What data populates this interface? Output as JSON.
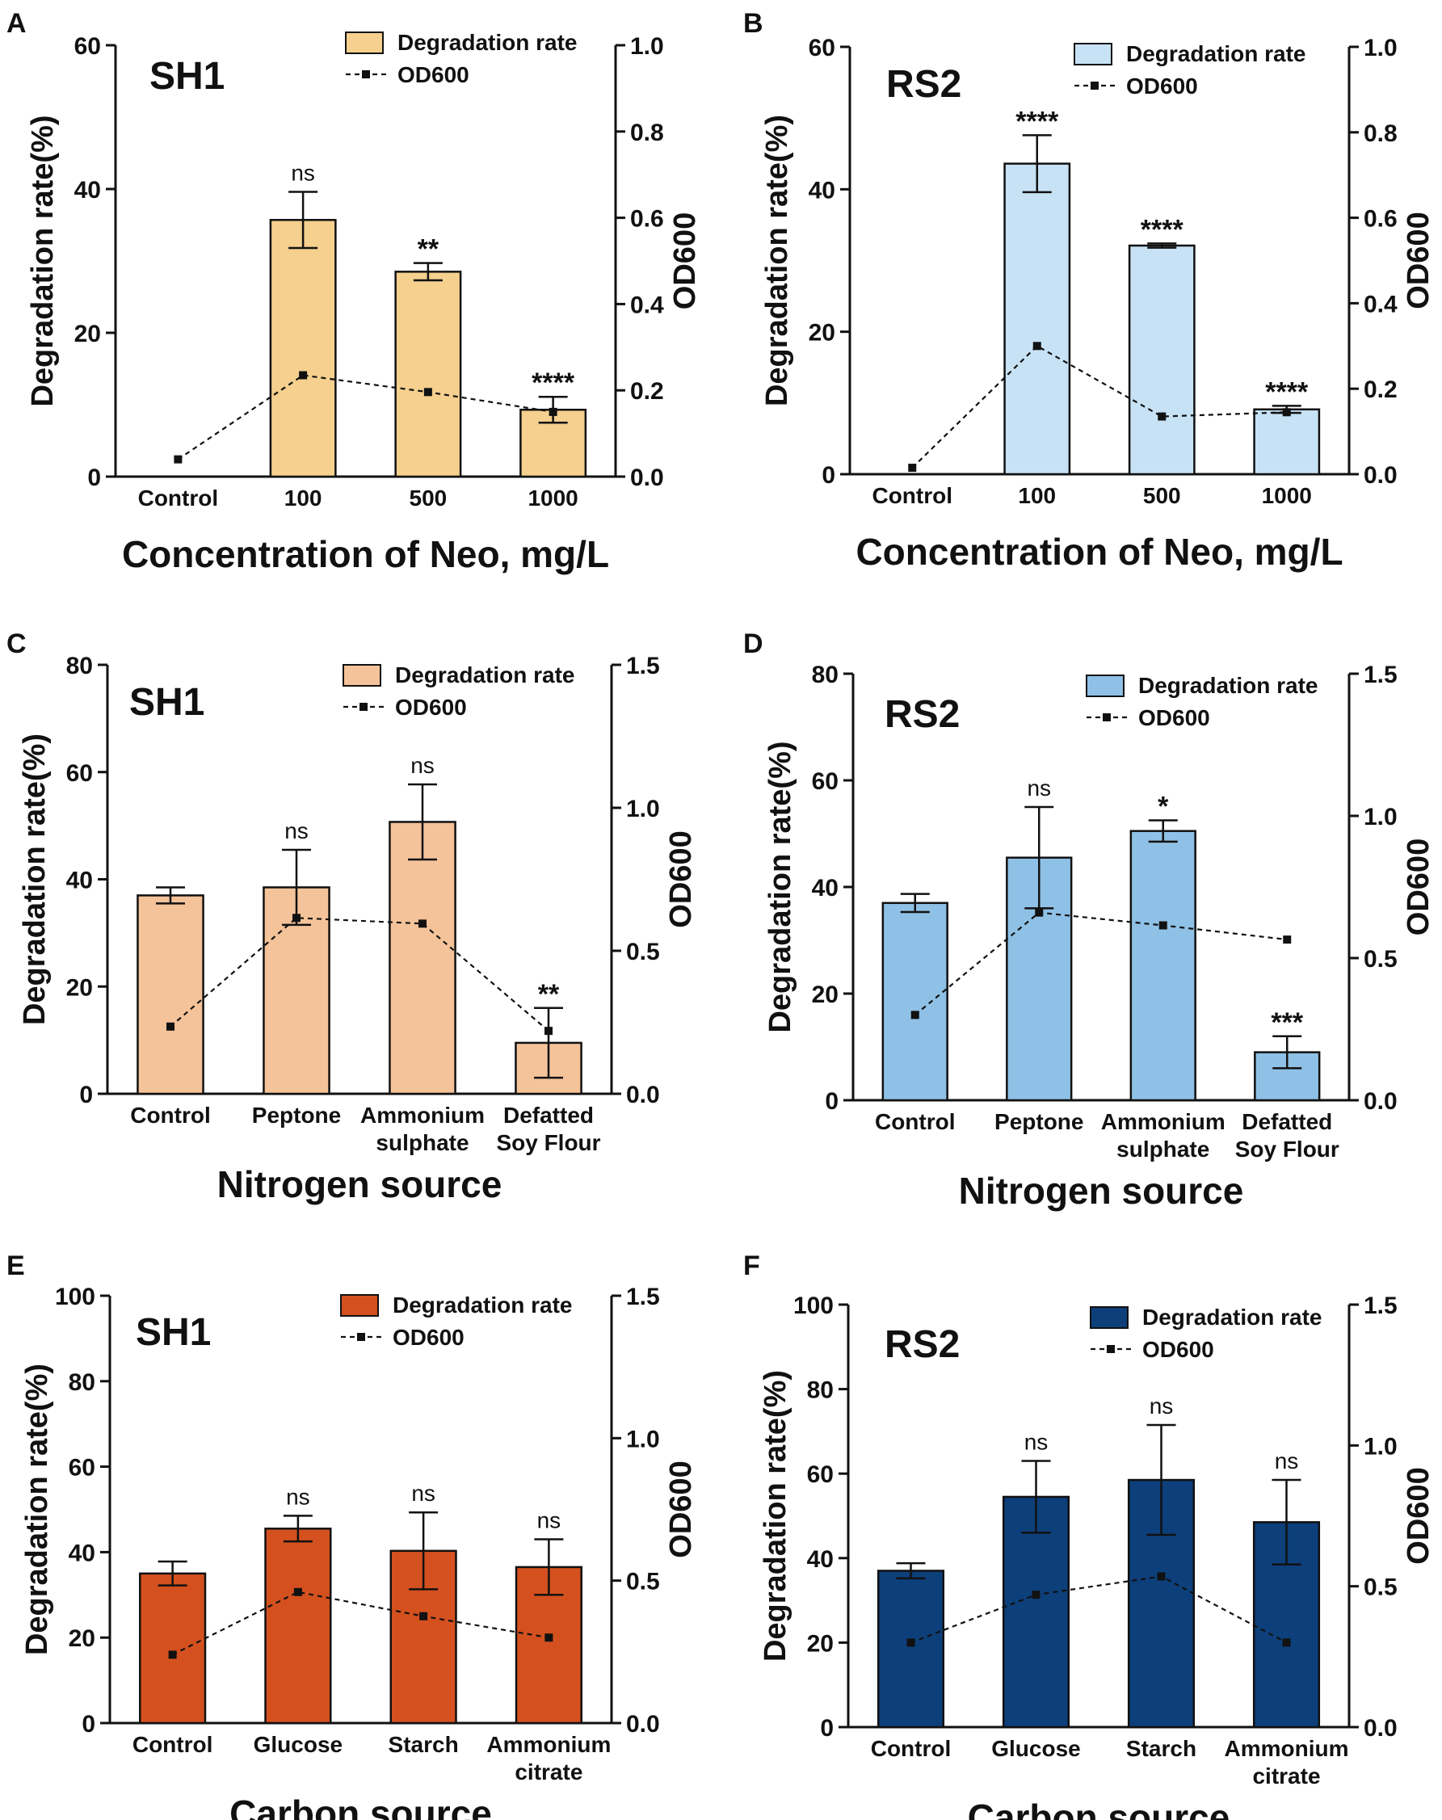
{
  "figure": {
    "panels": [
      "A",
      "B",
      "C",
      "D",
      "E",
      "F"
    ]
  },
  "chart_data": [
    {
      "panel": "A",
      "type": "bar",
      "strain": "SH1",
      "categories": [
        "Control",
        "100",
        "500",
        "1000"
      ],
      "series": [
        {
          "name": "Degradation rate",
          "axis": "left",
          "values": [
            0,
            35.7,
            28.5,
            9.3
          ],
          "errors": [
            0,
            3.9,
            1.2,
            1.8
          ]
        },
        {
          "name": "OD600",
          "axis": "right",
          "type": "line",
          "values": [
            0.04,
            0.235,
            0.196,
            0.15
          ]
        }
      ],
      "significance": [
        "",
        "ns",
        "**",
        "****"
      ],
      "ylabel_left": "Degradation rate(%)",
      "ylabel_right": "OD600",
      "xlabel": "Concentration of Neo, mg/L",
      "ylim_left": [
        0,
        60
      ],
      "yticks_left": [
        0,
        20,
        40,
        60
      ],
      "ylim_right": [
        0,
        1.0
      ],
      "yticks_right": [
        "0.0",
        "0.2",
        "0.4",
        "0.6",
        "0.8",
        "1.0"
      ],
      "bar_color": "#f5d08e",
      "legend": {
        "bar": "Degradation rate",
        "line": "OD600",
        "position": "top-right"
      }
    },
    {
      "panel": "B",
      "type": "bar",
      "strain": "RS2",
      "categories": [
        "Control",
        "100",
        "500",
        "1000"
      ],
      "series": [
        {
          "name": "Degradation rate",
          "axis": "left",
          "values": [
            0,
            43.6,
            32.1,
            9.1
          ],
          "errors": [
            0,
            4.0,
            0.3,
            0.5
          ]
        },
        {
          "name": "OD600",
          "axis": "right",
          "type": "line",
          "values": [
            0.015,
            0.3,
            0.135,
            0.145
          ]
        }
      ],
      "significance": [
        "",
        "****",
        "****",
        "****"
      ],
      "ylabel_left": "Degradation rate(%)",
      "ylabel_right": "OD600",
      "xlabel": "Concentration of Neo, mg/L",
      "ylim_left": [
        0,
        60
      ],
      "yticks_left": [
        0,
        20,
        40,
        60
      ],
      "ylim_right": [
        0,
        1.0
      ],
      "yticks_right": [
        "0.0",
        "0.2",
        "0.4",
        "0.6",
        "0.8",
        "1.0"
      ],
      "bar_color": "#c7e2f5",
      "legend": {
        "bar": "Degradation rate",
        "line": "OD600",
        "position": "top-right"
      }
    },
    {
      "panel": "C",
      "type": "bar",
      "strain": "SH1",
      "categories": [
        "Control",
        "Peptone",
        "Ammonium\nsulphate",
        "Defatted\nSoy Flour"
      ],
      "series": [
        {
          "name": "Degradation rate",
          "axis": "left",
          "values": [
            37.0,
            38.5,
            50.7,
            9.5
          ],
          "errors": [
            1.5,
            7.0,
            7.0,
            6.5
          ]
        },
        {
          "name": "OD600",
          "axis": "right",
          "type": "line",
          "values": [
            0.235,
            0.615,
            0.595,
            0.22
          ]
        }
      ],
      "significance": [
        "",
        "ns",
        "ns",
        "**"
      ],
      "ylabel_left": "Degradation rate(%)",
      "ylabel_right": "OD600",
      "xlabel": "Nitrogen source",
      "ylim_left": [
        0,
        80
      ],
      "yticks_left": [
        0,
        20,
        40,
        60,
        80
      ],
      "ylim_right": [
        0,
        1.5
      ],
      "yticks_right": [
        "0.0",
        "0.5",
        "1.0",
        "1.5"
      ],
      "bar_color": "#f5c39a",
      "legend": {
        "bar": "Degradation rate",
        "line": "OD600",
        "position": "top-right"
      }
    },
    {
      "panel": "D",
      "type": "bar",
      "strain": "RS2",
      "categories": [
        "Control",
        "Peptone",
        "Ammonium\nsulphate",
        "Defatted\nSoy Flour"
      ],
      "series": [
        {
          "name": "Degradation rate",
          "axis": "left",
          "values": [
            37.0,
            45.5,
            50.5,
            9.0
          ],
          "errors": [
            1.7,
            9.5,
            2.0,
            3.0
          ]
        },
        {
          "name": "OD600",
          "axis": "right",
          "type": "line",
          "values": [
            0.3,
            0.66,
            0.615,
            0.565
          ]
        }
      ],
      "significance": [
        "",
        "ns",
        "*",
        "***"
      ],
      "ylabel_left": "Degradation rate(%)",
      "ylabel_right": "OD600",
      "xlabel": "Nitrogen source",
      "ylim_left": [
        0,
        80
      ],
      "yticks_left": [
        0,
        20,
        40,
        60,
        80
      ],
      "ylim_right": [
        0,
        1.5
      ],
      "yticks_right": [
        "0.0",
        "0.5",
        "1.0",
        "1.5"
      ],
      "bar_color": "#8fc1e6",
      "legend": {
        "bar": "Degradation rate",
        "line": "OD600",
        "position": "top-right"
      }
    },
    {
      "panel": "E",
      "type": "bar",
      "strain": "SH1",
      "categories": [
        "Control",
        "Glucose",
        "Starch",
        "Ammonium\ncitrate"
      ],
      "series": [
        {
          "name": "Degradation rate",
          "axis": "left",
          "values": [
            35.0,
            45.5,
            40.3,
            36.5
          ],
          "errors": [
            2.8,
            3.0,
            9.0,
            6.5
          ]
        },
        {
          "name": "OD600",
          "axis": "right",
          "type": "line",
          "values": [
            0.24,
            0.46,
            0.375,
            0.3
          ]
        }
      ],
      "significance": [
        "",
        "ns",
        "ns",
        "ns"
      ],
      "ylabel_left": "Degradation rate(%)",
      "ylabel_right": "OD600",
      "xlabel": "Carbon source",
      "ylim_left": [
        0,
        100
      ],
      "yticks_left": [
        0,
        20,
        40,
        60,
        80,
        100
      ],
      "ylim_right": [
        0,
        1.5
      ],
      "yticks_right": [
        "0.0",
        "0.5",
        "1.0",
        "1.5"
      ],
      "bar_color": "#d4511f",
      "legend": {
        "bar": "Degradation rate",
        "line": "OD600",
        "position": "top-right"
      }
    },
    {
      "panel": "F",
      "type": "bar",
      "strain": "RS2",
      "categories": [
        "Control",
        "Glucose",
        "Starch",
        "Ammonium\ncitrate"
      ],
      "series": [
        {
          "name": "Degradation rate",
          "axis": "left",
          "values": [
            37.0,
            54.5,
            58.5,
            48.5
          ],
          "errors": [
            1.8,
            8.5,
            13.0,
            10.0
          ]
        },
        {
          "name": "OD600",
          "axis": "right",
          "type": "line",
          "values": [
            0.3,
            0.47,
            0.535,
            0.3
          ]
        }
      ],
      "significance": [
        "",
        "ns",
        "ns",
        "ns"
      ],
      "ylabel_left": "Degradation rate(%)",
      "ylabel_right": "OD600",
      "xlabel": "Carbon source",
      "ylim_left": [
        0,
        100
      ],
      "yticks_left": [
        0,
        20,
        40,
        60,
        80,
        100
      ],
      "ylim_right": [
        0,
        1.5
      ],
      "yticks_right": [
        "0.0",
        "0.5",
        "1.0",
        "1.5"
      ],
      "bar_color": "#0d3f7a",
      "legend": {
        "bar": "Degradation rate",
        "line": "OD600",
        "position": "top-right"
      }
    }
  ]
}
